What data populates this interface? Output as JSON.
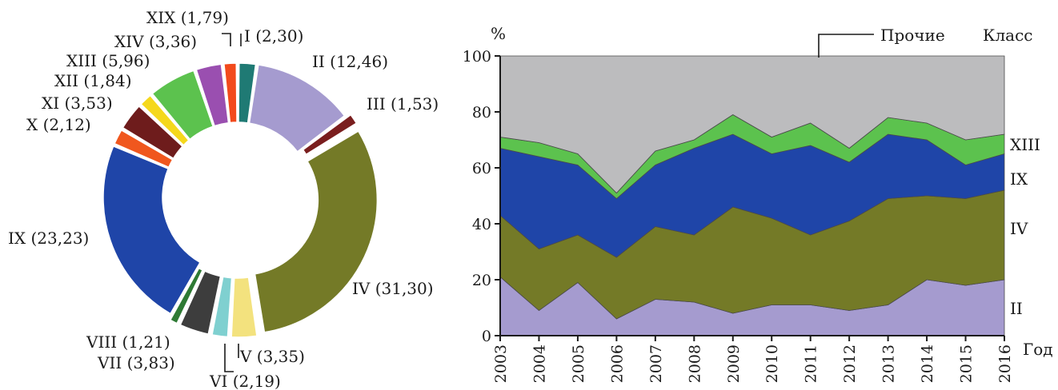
{
  "chart_data": [
    {
      "type": "pie",
      "variant": "donut",
      "slices": [
        {
          "label": "I (2,30)",
          "name": "I",
          "value": 2.3,
          "color": "#1f7a74"
        },
        {
          "label": "II (12,46)",
          "name": "II",
          "value": 12.46,
          "color": "#a59bcf"
        },
        {
          "label": "III (1,53)",
          "name": "III",
          "value": 1.53,
          "color": "#7a1e1e"
        },
        {
          "label": "IV (31,30)",
          "name": "IV",
          "value": 31.3,
          "color": "#747a27"
        },
        {
          "label": "V (3,35)",
          "name": "V",
          "value": 3.35,
          "color": "#f3e27e"
        },
        {
          "label": "VI (2,19)",
          "name": "VI",
          "value": 2.19,
          "color": "#7fd0d0"
        },
        {
          "label": "VII (3,83)",
          "name": "VII",
          "value": 3.83,
          "color": "#3d3d3d"
        },
        {
          "label": "VIII (1,21)",
          "name": "VIII",
          "value": 1.21,
          "color": "#2e7a34"
        },
        {
          "label": "IX (23,23)",
          "name": "IX",
          "value": 23.23,
          "color": "#1f45a8"
        },
        {
          "label": "X (2,12)",
          "name": "X",
          "value": 2.12,
          "color": "#f0571e"
        },
        {
          "label": "XI (3,53)",
          "name": "XI",
          "value": 3.53,
          "color": "#6e1c1c"
        },
        {
          "label": "XII (1,84)",
          "name": "XII",
          "value": 1.84,
          "color": "#f5d81c"
        },
        {
          "label": "XIII (5,96)",
          "name": "XIII",
          "value": 5.96,
          "color": "#5cc24e"
        },
        {
          "label": "XIV (3,36)",
          "name": "XIV",
          "value": 3.36,
          "color": "#9a4fb0"
        },
        {
          "label": "XIX (1,79)",
          "name": "XIX",
          "value": 1.79,
          "color": "#f24a1c"
        }
      ]
    },
    {
      "type": "area",
      "stacked": true,
      "ylabel": "%",
      "xlabel": "Год",
      "legend_title": "Класс",
      "ylim": [
        0,
        100
      ],
      "yticks": [
        0,
        20,
        40,
        60,
        80,
        100
      ],
      "x": [
        "2003",
        "2004",
        "2005",
        "2006",
        "2007",
        "2008",
        "2009",
        "2010",
        "2011",
        "2012",
        "2013",
        "2014",
        "2015",
        "2016"
      ],
      "series": [
        {
          "name": "II",
          "color": "#a59bcf",
          "values": [
            21,
            9,
            19,
            6,
            13,
            12,
            8,
            11,
            11,
            9,
            11,
            20,
            18,
            20
          ]
        },
        {
          "name": "IV",
          "color": "#747a27",
          "values": [
            22,
            22,
            17,
            22,
            26,
            24,
            38,
            31,
            25,
            32,
            38,
            30,
            31,
            32
          ]
        },
        {
          "name": "IX",
          "color": "#1f45a8",
          "values": [
            24,
            33,
            25,
            21,
            22,
            31,
            26,
            23,
            32,
            21,
            23,
            20,
            12,
            13
          ]
        },
        {
          "name": "XIII",
          "color": "#5cc24e",
          "values": [
            4,
            5,
            4,
            2,
            5,
            3,
            7,
            6,
            8,
            5,
            6,
            6,
            9,
            7
          ]
        },
        {
          "name": "Прочие",
          "color": "#bcbcbe",
          "values": [
            29,
            31,
            35,
            49,
            34,
            30,
            21,
            29,
            24,
            33,
            22,
            24,
            30,
            28
          ]
        }
      ]
    }
  ]
}
